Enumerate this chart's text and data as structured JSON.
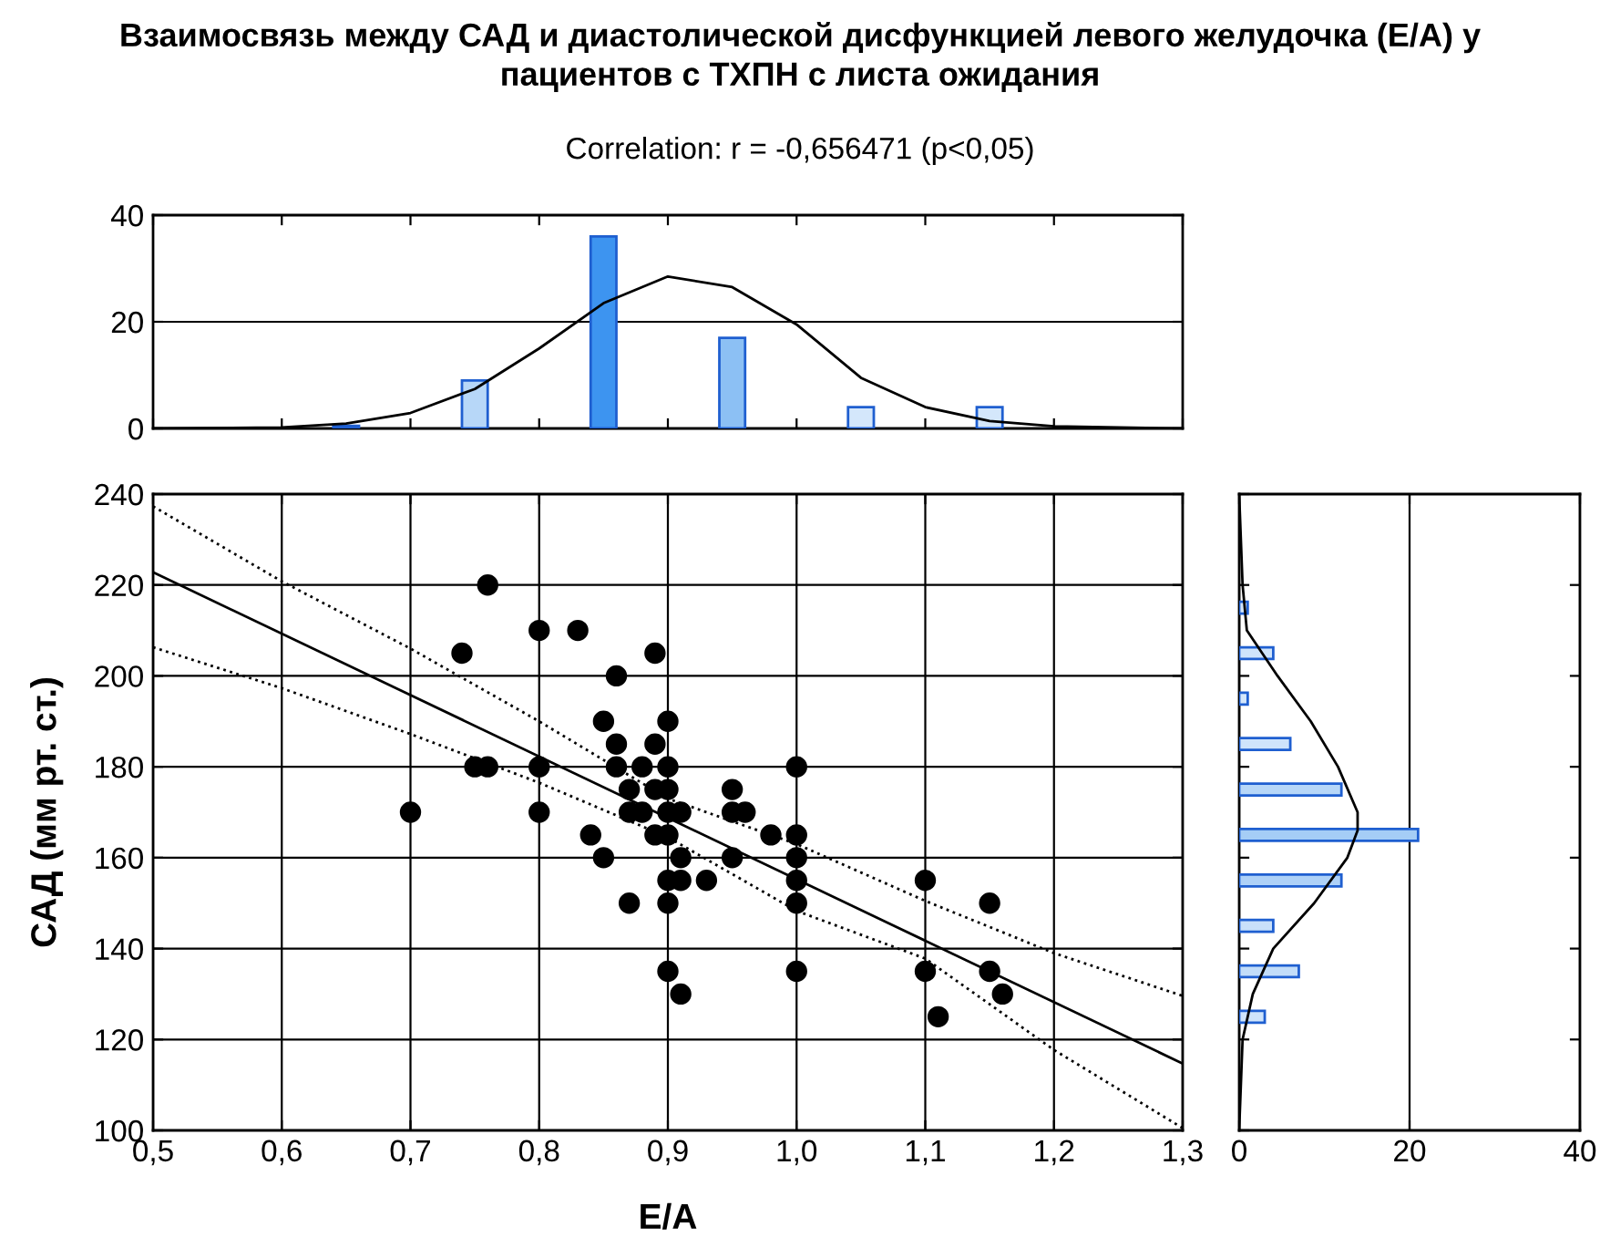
{
  "chart_data": [
    {
      "type": "bar",
      "title": "Взаимосвязь между САД и диастолической дисфункцией левого желудочка (E/A) у\nпациентов с ТХПН с листа ожидания",
      "subtitle": "Correlation: r = -0,656471 (p<0,05)",
      "xlim": [
        0.5,
        1.3
      ],
      "ylim": [
        0,
        40
      ],
      "yticks": [
        0,
        20,
        40
      ],
      "grid": "y",
      "tick_labels": "y",
      "series": [
        {
          "x": [
            0.65,
            0.75,
            0.85,
            0.95,
            1.05,
            1.15
          ],
          "values": [
            0.5,
            9,
            36,
            17,
            4,
            4
          ],
          "colors": [
            "#cfe4fb",
            "#b7d7f8",
            "#3d94f0",
            "#8cc0f4",
            "#d4e7fb",
            "#d4e7fb"
          ]
        },
        {
          "type": "line",
          "color": "#000000",
          "x": [
            0.5,
            0.6,
            0.65,
            0.7,
            0.75,
            0.8,
            0.85,
            0.9,
            0.95,
            1.0,
            1.05,
            1.1,
            1.15,
            1.2,
            1.3
          ],
          "values": [
            0,
            0.2,
            0.9,
            2.9,
            7.4,
            15.0,
            23.5,
            28.5,
            26.5,
            19.5,
            9.5,
            4.0,
            1.4,
            0.4,
            0
          ]
        }
      ]
    },
    {
      "type": "scatter",
      "xlabel": "E/A",
      "ylabel": "САД (мм рт. ст.)",
      "xlim": [
        0.5,
        1.3
      ],
      "ylim": [
        100,
        240
      ],
      "xticks": [
        {
          "value": 0.5,
          "label": "0,5"
        },
        {
          "value": 0.6,
          "label": "0,6"
        },
        {
          "value": 0.7,
          "label": "0,7"
        },
        {
          "value": 0.8,
          "label": "0,8"
        },
        {
          "value": 0.9,
          "label": "0,9"
        },
        {
          "value": 1.0,
          "label": "1,0"
        },
        {
          "value": 1.1,
          "label": "1,1"
        },
        {
          "value": 1.2,
          "label": "1,2"
        },
        {
          "value": 1.3,
          "label": "1,3"
        }
      ],
      "yticks": [
        100,
        120,
        140,
        160,
        180,
        200,
        220,
        240
      ],
      "grid": true,
      "series": [
        {
          "marker": "circle",
          "color": "#000000",
          "x": [
            0.76,
            0.74,
            0.8,
            0.83,
            0.89,
            0.86,
            0.85,
            0.9,
            0.86,
            0.89,
            0.75,
            0.76,
            0.8,
            0.86,
            0.88,
            0.9,
            0.87,
            0.89,
            0.9,
            0.7,
            0.8,
            0.87,
            0.88,
            0.9,
            0.91,
            0.84,
            0.89,
            0.9,
            0.85,
            0.91,
            0.9,
            0.91,
            0.87,
            0.9,
            0.9,
            0.91,
            0.93,
            0.95,
            0.95,
            0.96,
            0.95,
            0.98,
            1.0,
            1.0,
            1.0,
            1.0,
            1.0,
            1.0,
            1.1,
            1.1,
            1.11,
            1.15,
            1.15,
            1.16
          ],
          "values": [
            220,
            205,
            210,
            210,
            205,
            200,
            190,
            190,
            185,
            185,
            180,
            180,
            180,
            180,
            180,
            180,
            175,
            175,
            175,
            170,
            170,
            170,
            170,
            170,
            170,
            165,
            165,
            165,
            160,
            160,
            155,
            155,
            150,
            150,
            135,
            130,
            155,
            175,
            170,
            170,
            160,
            165,
            180,
            165,
            160,
            155,
            150,
            135,
            155,
            135,
            125,
            150,
            135,
            130
          ]
        },
        {
          "type": "line",
          "color": "#000000",
          "line_style": "solid",
          "x": [
            0.5,
            1.3
          ],
          "values": [
            222.8,
            114.7
          ]
        },
        {
          "type": "line",
          "color": "#000000",
          "line_style": "dotted",
          "x": [
            0.5,
            0.6,
            0.7,
            0.8,
            0.9,
            1.0,
            1.1,
            1.2,
            1.3
          ],
          "values": [
            237.3,
            220.8,
            206,
            190,
            173,
            163,
            150.5,
            139,
            129.6
          ]
        },
        {
          "type": "line",
          "color": "#000000",
          "line_style": "dotted",
          "x": [
            0.5,
            0.6,
            0.7,
            0.8,
            0.9,
            1.0,
            1.1,
            1.2,
            1.3
          ],
          "values": [
            206.3,
            197.3,
            187.2,
            176.5,
            164.5,
            148.3,
            137.8,
            117.7,
            100.5
          ]
        }
      ]
    },
    {
      "type": "bar",
      "orientation": "horizontal",
      "xlim": [
        0,
        40
      ],
      "xticks": [
        0,
        20,
        40
      ],
      "ylim": [
        100,
        240
      ],
      "yticks": [
        100,
        120,
        140,
        160,
        180,
        200,
        220,
        240
      ],
      "grid": "x",
      "tick_labels": "x",
      "series": [
        {
          "x": [
            125,
            135,
            145,
            155,
            165,
            175,
            185,
            195,
            205,
            215
          ],
          "values": [
            3,
            7,
            4,
            12,
            21,
            12,
            6,
            1,
            4,
            1
          ],
          "colors": [
            "#cfe4fb",
            "#c2ddf9",
            "#c9e0fa",
            "#aed1f7",
            "#a5cdf6",
            "#b7d7f8",
            "#cfe4fb",
            "#d4e7fb",
            "#cfe4fb",
            "#d4e7fb"
          ]
        },
        {
          "type": "line",
          "color": "#000000",
          "x": [
            100,
            120,
            130,
            140,
            150,
            160,
            166,
            170,
            180,
            190,
            200,
            210,
            220,
            240
          ],
          "values": [
            0,
            0.4,
            1.6,
            4.0,
            8.8,
            12.7,
            13.9,
            13.9,
            11.6,
            8.4,
            4.5,
            0.9,
            0.4,
            0
          ]
        }
      ]
    }
  ]
}
